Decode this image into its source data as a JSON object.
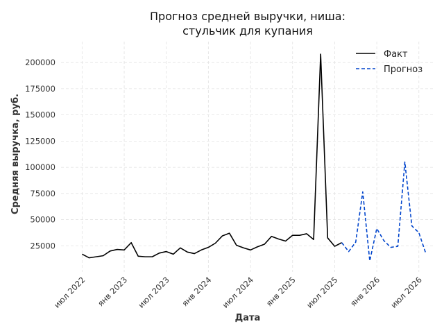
{
  "chart_data": {
    "type": "line",
    "title": [
      "Прогноз средней выручки, ниша:",
      "стульчик для купания"
    ],
    "xlabel": "Дата",
    "ylabel": "Средняя выручка, руб.",
    "ylim": [
      0,
      220000
    ],
    "yticks": [
      25000,
      50000,
      75000,
      100000,
      125000,
      150000,
      175000,
      200000
    ],
    "xticks": [
      {
        "date": "2022-07-01",
        "label": "июл 2022"
      },
      {
        "date": "2023-01-01",
        "label": "янв 2023"
      },
      {
        "date": "2023-07-01",
        "label": "июл 2023"
      },
      {
        "date": "2024-01-01",
        "label": "янв 2024"
      },
      {
        "date": "2024-07-01",
        "label": "июл 2024"
      },
      {
        "date": "2025-01-01",
        "label": "янв 2025"
      },
      {
        "date": "2025-07-01",
        "label": "июл 2025"
      },
      {
        "date": "2026-01-01",
        "label": "янв 2026"
      },
      {
        "date": "2026-07-01",
        "label": "июл 2026"
      }
    ],
    "xlim": [
      "2022-04-01",
      "2026-09-01"
    ],
    "grid": true,
    "legend_position": "top-right",
    "series": [
      {
        "name": "Факт",
        "color": "#000000",
        "style": "solid",
        "points": [
          [
            "2022-07-01",
            17000
          ],
          [
            "2022-08-01",
            13500
          ],
          [
            "2022-09-01",
            14500
          ],
          [
            "2022-10-01",
            15500
          ],
          [
            "2022-11-01",
            20000
          ],
          [
            "2022-12-01",
            21500
          ],
          [
            "2023-01-01",
            21000
          ],
          [
            "2023-02-01",
            28000
          ],
          [
            "2023-03-01",
            15000
          ],
          [
            "2023-04-01",
            14500
          ],
          [
            "2023-05-01",
            14500
          ],
          [
            "2023-06-01",
            18000
          ],
          [
            "2023-07-01",
            19500
          ],
          [
            "2023-08-01",
            17000
          ],
          [
            "2023-09-01",
            23000
          ],
          [
            "2023-10-01",
            19000
          ],
          [
            "2023-11-01",
            17500
          ],
          [
            "2023-12-01",
            21000
          ],
          [
            "2024-01-01",
            23500
          ],
          [
            "2024-02-01",
            27500
          ],
          [
            "2024-03-01",
            34500
          ],
          [
            "2024-04-01",
            37000
          ],
          [
            "2024-05-01",
            25500
          ],
          [
            "2024-06-01",
            23000
          ],
          [
            "2024-07-01",
            21000
          ],
          [
            "2024-08-01",
            24000
          ],
          [
            "2024-09-01",
            26500
          ],
          [
            "2024-10-01",
            34000
          ],
          [
            "2024-11-01",
            31500
          ],
          [
            "2024-12-01",
            29500
          ],
          [
            "2025-01-01",
            35000
          ],
          [
            "2025-02-01",
            35000
          ],
          [
            "2025-03-01",
            36500
          ],
          [
            "2025-04-01",
            31000
          ],
          [
            "2025-05-01",
            208000
          ],
          [
            "2025-06-01",
            32500
          ],
          [
            "2025-07-01",
            24500
          ],
          [
            "2025-08-01",
            28000
          ]
        ]
      },
      {
        "name": "Прогноз",
        "color": "#0044cc",
        "style": "dashed",
        "points": [
          [
            "2025-08-01",
            28000
          ],
          [
            "2025-09-01",
            19500
          ],
          [
            "2025-10-01",
            28500
          ],
          [
            "2025-11-01",
            76500
          ],
          [
            "2025-12-01",
            10500
          ],
          [
            "2026-01-01",
            41500
          ],
          [
            "2026-02-01",
            30000
          ],
          [
            "2026-03-01",
            23500
          ],
          [
            "2026-04-01",
            24500
          ],
          [
            "2026-05-01",
            105000
          ],
          [
            "2026-06-01",
            44000
          ],
          [
            "2026-07-01",
            37500
          ],
          [
            "2026-08-01",
            17500
          ]
        ]
      }
    ]
  }
}
